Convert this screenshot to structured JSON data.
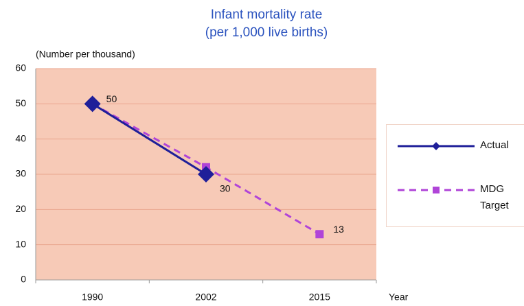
{
  "chart_data": {
    "type": "line",
    "title": "Infant mortality rate",
    "subtitle": "(per 1,000 live births)",
    "y_label": "(Number per thousand)",
    "x_label": "Year",
    "categories": [
      "1990",
      "2002",
      "2015"
    ],
    "series": [
      {
        "name": "Actual",
        "color": "#1f1f99",
        "values": [
          50,
          30,
          null
        ]
      },
      {
        "name": "MDG Target",
        "color": "#b044d8",
        "values": [
          50,
          32,
          13
        ]
      }
    ],
    "data_labels": [
      {
        "series": 0,
        "index": 0
      },
      {
        "series": 0,
        "index": 1
      },
      {
        "series": 1,
        "index": 2
      }
    ],
    "ylim": [
      0,
      60
    ],
    "yticks": [
      0,
      10,
      20,
      30,
      40,
      50,
      60
    ],
    "grid": true
  }
}
